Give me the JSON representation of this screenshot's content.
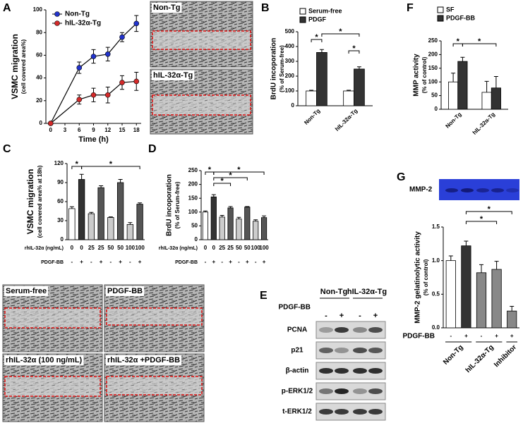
{
  "panel_labels": [
    "A",
    "B",
    "C",
    "D",
    "E",
    "F",
    "G"
  ],
  "chart_data": [
    {
      "type": "line",
      "y_label": "VSMC migration",
      "y_label_sub": "(cell covered area%)",
      "x_label": "Time (h)",
      "x": [
        0,
        6,
        9,
        12,
        15,
        18
      ],
      "xlim": [
        -1,
        19
      ],
      "xticks": [
        0,
        3,
        6,
        9,
        12,
        15,
        18
      ],
      "ylim": [
        0,
        100
      ],
      "yticks": [
        0,
        20,
        40,
        60,
        80,
        100
      ],
      "series": [
        {
          "name": "Non-Tg",
          "color": "#2233cc",
          "values": [
            0,
            49,
            59,
            61,
            76,
            88
          ],
          "errors": [
            0,
            5,
            6,
            6,
            4,
            7
          ]
        },
        {
          "name": "hIL-32α-Tg",
          "color": "#d42a2a",
          "values": [
            0,
            21,
            25,
            25,
            36,
            37
          ],
          "errors": [
            0,
            4,
            6,
            7,
            6,
            8
          ]
        }
      ]
    },
    {
      "type": "bar",
      "y_label": "BrdU incoporation",
      "y_label_sub": "(% of Serum-free)",
      "categories": [
        "Non-Tg",
        "hIL-32α-Tg"
      ],
      "ylim": [
        0,
        500
      ],
      "yticks": [
        0,
        100,
        200,
        300,
        400,
        500
      ],
      "series": [
        {
          "name": "Serum-free",
          "color": "#ffffff",
          "values": [
            100,
            100
          ],
          "errors": [
            5,
            5
          ]
        },
        {
          "name": "PDGF",
          "color": "#333333",
          "values": [
            360,
            248
          ],
          "errors": [
            20,
            15
          ]
        }
      ],
      "annotations": [
        "*",
        "*",
        "*"
      ]
    },
    {
      "type": "bar",
      "y_label": "VSMC migration",
      "y_label_sub": "(cell covered area% at 18h)",
      "row_labels": [
        "rhIL-32α (ng/mL)",
        "PDGF-BB"
      ],
      "categories": [
        "0",
        "0",
        "25",
        "25",
        "50",
        "50",
        "100",
        "100"
      ],
      "categories2": [
        "-",
        "+",
        "-",
        "+",
        "-",
        "+",
        "-",
        "+"
      ],
      "values": [
        49,
        95,
        41,
        82,
        35,
        90,
        24,
        56
      ],
      "errors": [
        3,
        8,
        2,
        3,
        1,
        5,
        3,
        2
      ],
      "colors": [
        "#ffffff",
        "#333333",
        "#cccccc",
        "#555555",
        "#cccccc",
        "#555555",
        "#cccccc",
        "#555555"
      ],
      "ylim": [
        0,
        120
      ],
      "yticks": [
        0,
        30,
        60,
        90,
        120
      ],
      "annotations": [
        "*",
        "*"
      ]
    },
    {
      "type": "bar",
      "y_label": "BrdU incoporation",
      "y_label_sub": "(% of Serum-free)",
      "row_labels": [
        "rhIL-32α (ng/mL)",
        "PDGF-BB"
      ],
      "categories": [
        "0",
        "0",
        "25",
        "25",
        "50",
        "50",
        "100",
        "100"
      ],
      "categories2": [
        "-",
        "+",
        "-",
        "+",
        "-",
        "+",
        "-",
        "+"
      ],
      "values": [
        100,
        155,
        82,
        115,
        75,
        118,
        67,
        80
      ],
      "errors": [
        4,
        8,
        6,
        5,
        6,
        2,
        5,
        6
      ],
      "colors": [
        "#ffffff",
        "#333333",
        "#cccccc",
        "#555555",
        "#cccccc",
        "#555555",
        "#cccccc",
        "#555555"
      ],
      "ylim": [
        0,
        250
      ],
      "yticks": [
        0,
        50,
        100,
        150,
        200,
        250
      ],
      "annotations": [
        "*",
        "*",
        "*",
        "*"
      ]
    },
    {
      "type": "bar",
      "y_label": "MMP activity",
      "y_label_sub": "(% of control)",
      "categories": [
        "Non-Tg",
        "hIL-32α-Tg"
      ],
      "ylim": [
        0,
        250
      ],
      "yticks": [
        0,
        50,
        100,
        150,
        200,
        250
      ],
      "series": [
        {
          "name": "SF",
          "color": "#ffffff",
          "values": [
            100,
            62
          ],
          "errors": [
            32,
            40
          ]
        },
        {
          "name": "PDGF-BB",
          "color": "#333333",
          "values": [
            175,
            78
          ],
          "errors": [
            15,
            42
          ]
        }
      ],
      "annotations": [
        "*",
        "*"
      ]
    },
    {
      "type": "bar",
      "y_label": "MMP-2 gelatinolytic activity",
      "y_label_sub": "(% of control)",
      "row_labels": [
        "PDGF-BB"
      ],
      "categories": [
        "-",
        "+",
        "-",
        "+",
        "+"
      ],
      "groups": [
        "Non-Tg",
        "hIL-32α-Tg",
        "Inhibitor"
      ],
      "values": [
        1.0,
        1.22,
        0.82,
        0.87,
        0.25
      ],
      "errors": [
        0.07,
        0.07,
        0.12,
        0.12,
        0.07
      ],
      "colors": [
        "#ffffff",
        "#333333",
        "#888888",
        "#888888",
        "#888888"
      ],
      "ylim": [
        0,
        1.5
      ],
      "yticks": [
        {
          "value": 0,
          "label": "0.0"
        },
        {
          "value": 0.5,
          "label": "0.5"
        },
        {
          "value": 1,
          "label": "1.0"
        },
        {
          "value": 1.5,
          "label": "1.5"
        }
      ],
      "annotations": [
        "*",
        "*"
      ]
    }
  ],
  "micrographs": {
    "migration": [
      "Non-Tg",
      "hIL-32α-Tg"
    ],
    "treatments": [
      "Serum-free",
      "PDGF-BB",
      "rhIL-32α (100 ng/mL)",
      "rhIL-32α +PDGF-BB"
    ]
  },
  "blot": {
    "groups": [
      "Non-Tg",
      "hIL-32α-Tg"
    ],
    "treatment": "PDGF-BB",
    "lanes": [
      "-",
      "+",
      "-",
      "+"
    ],
    "proteins": [
      "PCNA",
      "p21",
      "β-actin",
      "p-ERK1/2",
      "t-ERK1/2"
    ]
  },
  "zymogram": {
    "label": "MMP-2"
  }
}
